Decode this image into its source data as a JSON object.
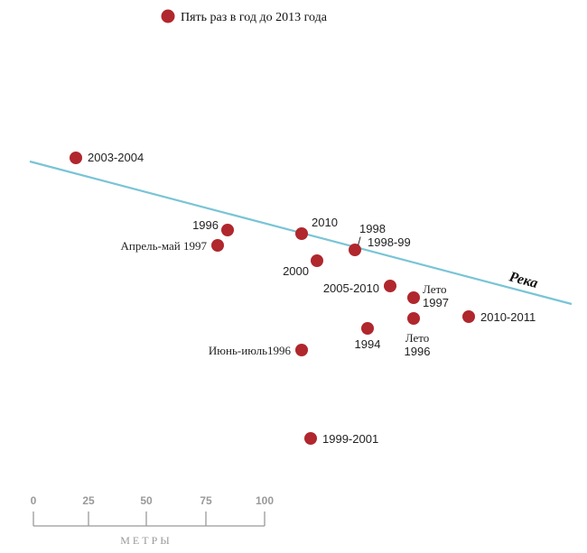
{
  "legend": {
    "label": "Пять раз в год до 2013 года",
    "marker_color": "#b0272d"
  },
  "river": {
    "label": "Река",
    "color": "#79c4d6"
  },
  "points": [
    {
      "id": "p-2003-2004",
      "label": "2003-2004"
    },
    {
      "id": "p-1996-a",
      "label": "1996"
    },
    {
      "id": "p-april-may-1997",
      "label": "Апрель-май 1997"
    },
    {
      "id": "p-2010",
      "label": "2010"
    },
    {
      "id": "p-2000",
      "label": "2000"
    },
    {
      "id": "p-1998",
      "label": "1998"
    },
    {
      "id": "p-1998-99",
      "label": "1998-99"
    },
    {
      "id": "p-2005-2010",
      "label": "2005-2010"
    },
    {
      "id": "p-summer-1997",
      "label_line1": "Лето",
      "label_line2": "1997"
    },
    {
      "id": "p-2010-2011",
      "label": "2010-2011"
    },
    {
      "id": "p-1994",
      "label": "1994"
    },
    {
      "id": "p-summer-1996",
      "label_line1": "Лето",
      "label_line2": "1996"
    },
    {
      "id": "p-june-july-1996",
      "label": "Июнь-июль1996"
    },
    {
      "id": "p-1999-2001",
      "label": "1999-2001"
    }
  ],
  "scale": {
    "ticks": [
      "0",
      "25",
      "50",
      "75",
      "100"
    ],
    "unit": "МЕТРЫ",
    "color": "#999999"
  }
}
